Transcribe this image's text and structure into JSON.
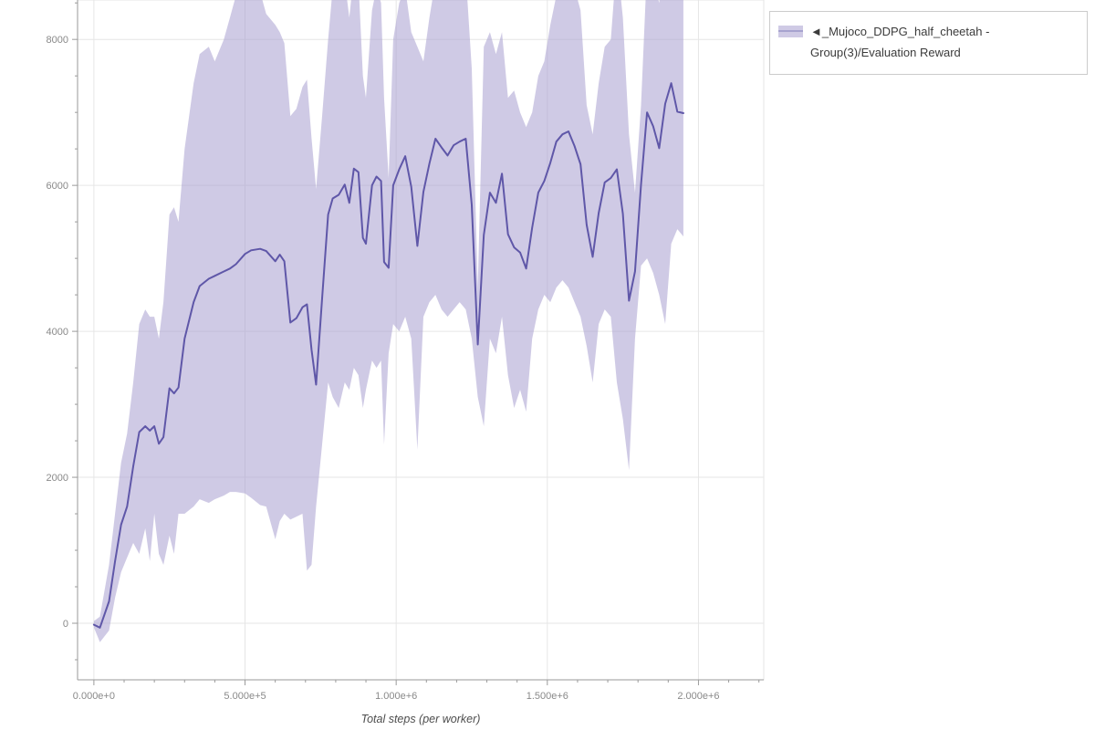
{
  "legend": {
    "label": "◄_Mujoco_DDPG_half_cheetah - Group(3)/Evaluation Reward"
  },
  "chart_data": {
    "type": "line",
    "title": "",
    "xlabel": "Total steps (per worker)",
    "ylabel": "",
    "grid": true,
    "legend_position": "top-right-outside",
    "xlim": [
      -54000,
      2216000
    ],
    "ylim": [
      -775,
      8540
    ],
    "x_ticks": [
      {
        "v": 0,
        "label": "0.000e+0"
      },
      {
        "v": 500000,
        "label": "5.000e+5"
      },
      {
        "v": 1000000,
        "label": "1.000e+6"
      },
      {
        "v": 1500000,
        "label": "1.500e+6"
      },
      {
        "v": 2000000,
        "label": "2.000e+6"
      }
    ],
    "y_ticks": [
      {
        "v": 0,
        "label": "0"
      },
      {
        "v": 2000,
        "label": "2000"
      },
      {
        "v": 4000,
        "label": "4000"
      },
      {
        "v": 6000,
        "label": "6000"
      },
      {
        "v": 8000,
        "label": "8000"
      }
    ],
    "series": [
      {
        "name": "◄_Mujoco_DDPG_half_cheetah - Group(3)/Evaluation Reward",
        "line_color": "#5f57a8",
        "band_fill": "#a79fd0",
        "band_opacity": 0.55,
        "points_format": [
          "x",
          "mean",
          "lower",
          "upper"
        ],
        "points": [
          [
            0,
            -20,
            -60,
            30
          ],
          [
            20000,
            -60,
            -260,
            90
          ],
          [
            50000,
            300,
            -100,
            800
          ],
          [
            70000,
            850,
            350,
            1500
          ],
          [
            90000,
            1350,
            700,
            2200
          ],
          [
            110000,
            1600,
            900,
            2600
          ],
          [
            130000,
            2150,
            1100,
            3300
          ],
          [
            150000,
            2620,
            950,
            4100
          ],
          [
            170000,
            2700,
            1300,
            4300
          ],
          [
            185000,
            2640,
            850,
            4200
          ],
          [
            200000,
            2700,
            1500,
            4200
          ],
          [
            215000,
            2460,
            950,
            3900
          ],
          [
            230000,
            2550,
            800,
            4400
          ],
          [
            250000,
            3220,
            1200,
            5600
          ],
          [
            265000,
            3150,
            950,
            5700
          ],
          [
            280000,
            3230,
            1500,
            5500
          ],
          [
            300000,
            3900,
            1500,
            6500
          ],
          [
            330000,
            4400,
            1600,
            7400
          ],
          [
            350000,
            4620,
            1700,
            7800
          ],
          [
            380000,
            4720,
            1650,
            7900
          ],
          [
            400000,
            4760,
            1700,
            7700
          ],
          [
            430000,
            4820,
            1750,
            8000
          ],
          [
            450000,
            4860,
            1800,
            8300
          ],
          [
            470000,
            4920,
            1800,
            8600
          ],
          [
            500000,
            5060,
            1780,
            8700
          ],
          [
            520000,
            5110,
            1720,
            8750
          ],
          [
            550000,
            5130,
            1620,
            8650
          ],
          [
            570000,
            5100,
            1600,
            8350
          ],
          [
            600000,
            4960,
            1150,
            8200
          ],
          [
            615000,
            5050,
            1400,
            8100
          ],
          [
            630000,
            4960,
            1500,
            7950
          ],
          [
            650000,
            4120,
            1420,
            6950
          ],
          [
            670000,
            4180,
            1460,
            7050
          ],
          [
            690000,
            4330,
            1500,
            7350
          ],
          [
            705000,
            4370,
            720,
            7450
          ],
          [
            720000,
            3750,
            800,
            6650
          ],
          [
            735000,
            3270,
            1600,
            5950
          ],
          [
            755000,
            4450,
            2450,
            6950
          ],
          [
            775000,
            5600,
            3300,
            8000
          ],
          [
            790000,
            5820,
            3100,
            8700
          ],
          [
            810000,
            5870,
            2950,
            8800
          ],
          [
            830000,
            6010,
            3300,
            8800
          ],
          [
            845000,
            5760,
            3200,
            8300
          ],
          [
            860000,
            6230,
            3500,
            8900
          ],
          [
            875000,
            6180,
            3400,
            8800
          ],
          [
            890000,
            5280,
            2950,
            7500
          ],
          [
            900000,
            5200,
            3200,
            7200
          ],
          [
            920000,
            6000,
            3600,
            8400
          ],
          [
            935000,
            6120,
            3500,
            8700
          ],
          [
            950000,
            6060,
            3600,
            8500
          ],
          [
            960000,
            4950,
            2450,
            7200
          ],
          [
            975000,
            4870,
            3700,
            6100
          ],
          [
            990000,
            6000,
            4100,
            8000
          ],
          [
            1010000,
            6220,
            4000,
            8500
          ],
          [
            1030000,
            6400,
            4200,
            8700
          ],
          [
            1050000,
            5980,
            3900,
            8100
          ],
          [
            1070000,
            5170,
            2380,
            7900
          ],
          [
            1090000,
            5910,
            4200,
            7700
          ],
          [
            1110000,
            6300,
            4400,
            8300
          ],
          [
            1130000,
            6640,
            4500,
            8800
          ],
          [
            1150000,
            6520,
            4300,
            8700
          ],
          [
            1170000,
            6410,
            4200,
            8600
          ],
          [
            1190000,
            6550,
            4300,
            8800
          ],
          [
            1210000,
            6600,
            4400,
            8800
          ],
          [
            1230000,
            6640,
            4300,
            8900
          ],
          [
            1250000,
            5730,
            3900,
            7600
          ],
          [
            1270000,
            3820,
            3100,
            4600
          ],
          [
            1290000,
            5320,
            2700,
            7900
          ],
          [
            1310000,
            5900,
            3900,
            8100
          ],
          [
            1330000,
            5760,
            3700,
            7800
          ],
          [
            1350000,
            6160,
            4200,
            8100
          ],
          [
            1370000,
            5330,
            3400,
            7200
          ],
          [
            1390000,
            5150,
            2950,
            7300
          ],
          [
            1410000,
            5080,
            3200,
            7000
          ],
          [
            1430000,
            4860,
            2900,
            6800
          ],
          [
            1450000,
            5420,
            3900,
            7000
          ],
          [
            1470000,
            5900,
            4300,
            7500
          ],
          [
            1490000,
            6060,
            4500,
            7700
          ],
          [
            1510000,
            6310,
            4400,
            8200
          ],
          [
            1530000,
            6600,
            4600,
            8600
          ],
          [
            1550000,
            6700,
            4700,
            8700
          ],
          [
            1570000,
            6740,
            4600,
            8900
          ],
          [
            1590000,
            6540,
            4400,
            8700
          ],
          [
            1610000,
            6290,
            4200,
            8400
          ],
          [
            1630000,
            5460,
            3800,
            7100
          ],
          [
            1650000,
            5020,
            3300,
            6700
          ],
          [
            1670000,
            5620,
            4100,
            7400
          ],
          [
            1690000,
            6040,
            4300,
            7900
          ],
          [
            1710000,
            6100,
            4200,
            8000
          ],
          [
            1730000,
            6220,
            3300,
            9100
          ],
          [
            1750000,
            5610,
            2800,
            8300
          ],
          [
            1770000,
            4420,
            2100,
            6700
          ],
          [
            1790000,
            4820,
            3900,
            5900
          ],
          [
            1810000,
            6010,
            4900,
            7100
          ],
          [
            1830000,
            7000,
            5000,
            9000
          ],
          [
            1850000,
            6810,
            4800,
            8800
          ],
          [
            1870000,
            6510,
            4500,
            8500
          ],
          [
            1890000,
            7120,
            4100,
            9500
          ],
          [
            1910000,
            7400,
            5200,
            9600
          ],
          [
            1930000,
            7010,
            5400,
            8700
          ],
          [
            1950000,
            6990,
            5300,
            8700
          ]
        ]
      }
    ]
  }
}
